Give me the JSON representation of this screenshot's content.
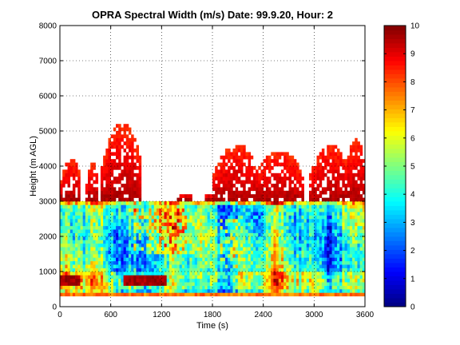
{
  "chart_data": {
    "type": "heatmap",
    "title": "OPRA Spectral Width (m/s)  Date: 99.9.20, Hour: 2",
    "xlabel": "Time (s)",
    "ylabel": "Height (m AGL)",
    "xlim": [
      0,
      3600
    ],
    "ylim": [
      0,
      8000
    ],
    "xticks": [
      "0",
      "600",
      "1200",
      "1800",
      "2400",
      "3000",
      "3600"
    ],
    "yticks": [
      "0",
      "1000",
      "2000",
      "3000",
      "4000",
      "5000",
      "6000",
      "7000",
      "8000"
    ],
    "grid": true,
    "colorbar": {
      "range": [
        0,
        10
      ],
      "ticks": [
        "0",
        "1",
        "2",
        "3",
        "4",
        "5",
        "6",
        "7",
        "8",
        "9",
        "10"
      ],
      "colormap": "jet"
    },
    "data_summary": {
      "time_step_s": 30,
      "height_step_m": 100,
      "bottom_band_m": [
        300,
        400
      ],
      "main_layer_top_m": 3000,
      "low_red_layer_m": [
        600,
        900
      ],
      "plumes": [
        {
          "t0": 0,
          "t1": 240,
          "top": 4200
        },
        {
          "t0": 300,
          "t1": 450,
          "top": 4100
        },
        {
          "t0": 480,
          "t1": 960,
          "top": 5200
        },
        {
          "t0": 1380,
          "t1": 1560,
          "top": 3200
        },
        {
          "t0": 1680,
          "t1": 1860,
          "top": 3200
        },
        {
          "t0": 1800,
          "t1": 2340,
          "top": 4600
        },
        {
          "t0": 2280,
          "t1": 2880,
          "top": 4400
        },
        {
          "t0": 2940,
          "t1": 3420,
          "top": 4600
        },
        {
          "t0": 3360,
          "t1": 3600,
          "top": 4800
        }
      ]
    }
  }
}
